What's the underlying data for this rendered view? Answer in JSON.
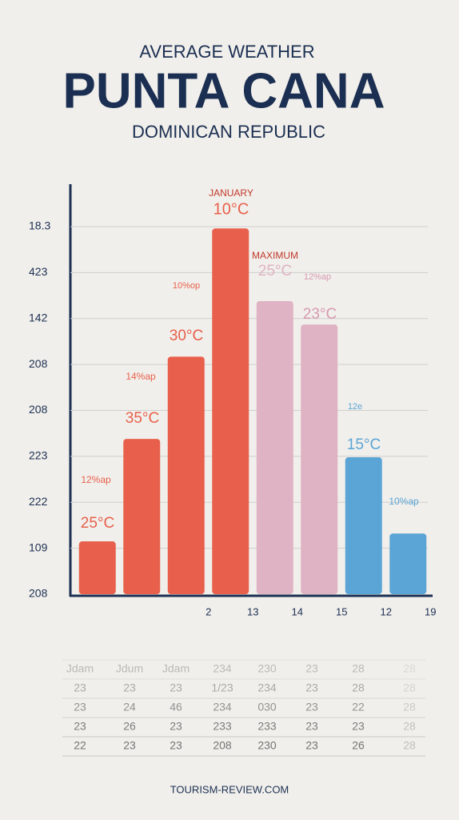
{
  "chart_data": {
    "type": "bar",
    "supertitle": "AVERAGE WEATHER",
    "title": "PUNTA CANA",
    "subtitle": "DOMINICAN REPUBLIC",
    "categories": [
      null,
      null,
      "2",
      "13",
      "14",
      "15",
      "12",
      "19"
    ],
    "values": [
      1.15,
      3.38,
      5.17,
      7.96,
      6.38,
      5.87,
      2.98,
      1.32
    ],
    "colors": [
      "#e8604c",
      "#e8604c",
      "#e8604c",
      "#e8604c",
      "#dfb3c3",
      "#dfb3c3",
      "#5aa5d6",
      "#5aa5d6"
    ],
    "ylim": [
      0,
      8
    ],
    "yticks": [
      {
        "value": 0,
        "label": "208"
      },
      {
        "value": 1,
        "label": "109"
      },
      {
        "value": 2,
        "label": "222"
      },
      {
        "value": 3,
        "label": "223"
      },
      {
        "value": 4,
        "label": "208"
      },
      {
        "value": 5,
        "label": "208"
      },
      {
        "value": 6,
        "label": "142"
      },
      {
        "value": 7,
        "label": "423"
      },
      {
        "value": 8,
        "label": "18.3"
      }
    ],
    "grid": true,
    "annotations": [
      "JANUARY",
      "10°C",
      "MAXIMUM",
      "25°C",
      "12%ap",
      "10%op",
      "30°C",
      "14%ap",
      "35°C",
      "12%ap",
      "25°C",
      "23°C",
      "12e",
      "15°C",
      "10%ap"
    ],
    "table": {
      "rows": [
        [
          "Jdam",
          "Jdum",
          "Jdam",
          "234",
          "230",
          "23",
          "28",
          "28"
        ],
        [
          "23",
          "23",
          "23",
          "1/23",
          "234",
          "23",
          "28",
          "28"
        ],
        [
          "23",
          "24",
          "46",
          "234",
          "030",
          "23",
          "22",
          "28"
        ],
        [
          "23",
          "26",
          "23",
          "233",
          "233",
          "23",
          "23",
          "28"
        ],
        [
          "22",
          "23",
          "23",
          "208",
          "230",
          "23",
          "26",
          "28"
        ]
      ]
    },
    "footer": "TOURISM-REVIEW.COM"
  }
}
